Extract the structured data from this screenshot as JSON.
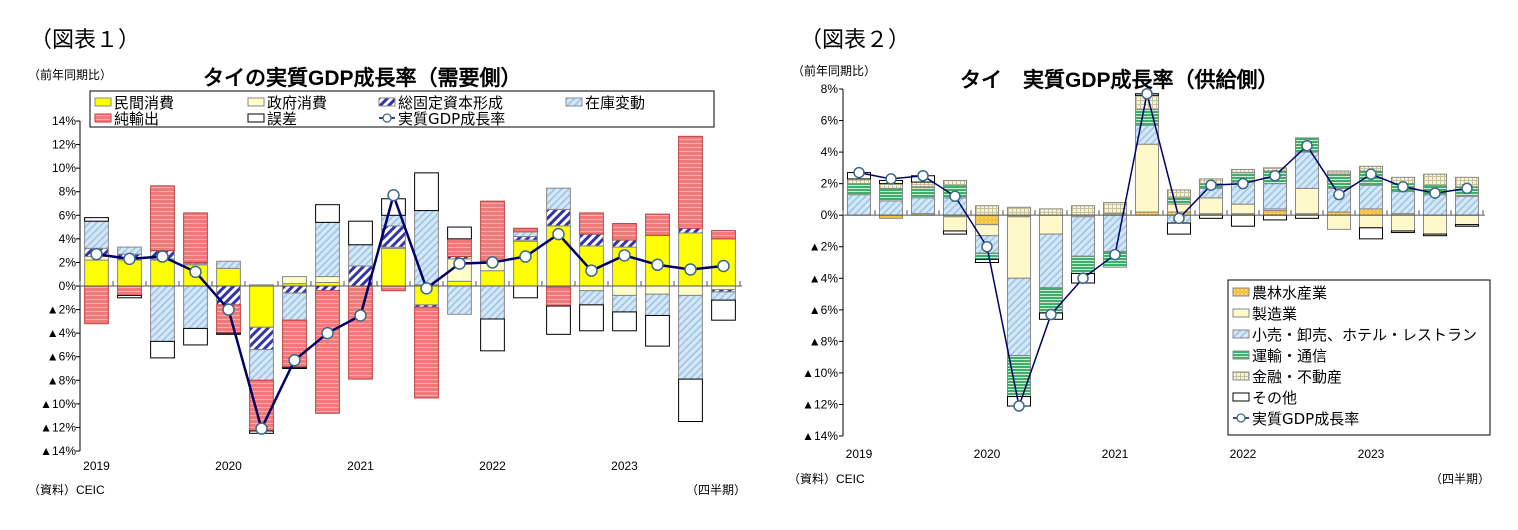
{
  "charts": [
    {
      "fig_label": "（図表１）",
      "unit_label": "（前年同期比）",
      "title": "タイの実質GDP成長率（需要側）",
      "source": "（資料）CEIC",
      "period_label": "（四半期）"
    },
    {
      "fig_label": "（図表２）",
      "unit_label": "（前年同期比）",
      "title": "タイ　実質GDP成長率（供給側）",
      "source": "（資料）CEIC",
      "period_label": "（四半期）"
    }
  ],
  "chart_data": [
    {
      "type": "bar",
      "stacked": true,
      "title": "タイの実質GDP成長率（需要側）",
      "ylabel": "（前年同期比）",
      "xlabel": "（四半期）",
      "ylim": [
        -14,
        14
      ],
      "yticks": [
        14,
        12,
        10,
        8,
        6,
        4,
        2,
        0,
        -2,
        -4,
        -6,
        -8,
        -10,
        -12,
        -14
      ],
      "ytick_labels": [
        "14%",
        "12%",
        "10%",
        "8%",
        "6%",
        "4%",
        "2%",
        "0%",
        "▲2%",
        "▲4%",
        "▲6%",
        "▲8%",
        "▲10%",
        "▲12%",
        "▲14%"
      ],
      "x_year_labels": [
        "2019",
        "2020",
        "2021",
        "2022",
        "2023"
      ],
      "legend_position": "top",
      "categories": [
        "2019Q1",
        "2019Q2",
        "2019Q3",
        "2019Q4",
        "2020Q1",
        "2020Q2",
        "2020Q3",
        "2020Q4",
        "2021Q1",
        "2021Q2",
        "2021Q3",
        "2021Q4",
        "2022Q1",
        "2022Q2",
        "2022Q3",
        "2022Q4",
        "2023Q1",
        "2023Q2",
        "2023Q3",
        "2023Q4"
      ],
      "series": [
        {
          "name": "民間消費",
          "color": "#ffff00",
          "pattern": "solid",
          "values": [
            2.2,
            2.2,
            2.2,
            1.8,
            1.5,
            -3.5,
            0.2,
            0.3,
            0.0,
            3.2,
            -1.6,
            0.4,
            1.3,
            3.8,
            5.1,
            3.4,
            3.3,
            4.3,
            4.5,
            4.0
          ]
        },
        {
          "name": "政府消費",
          "color": "#ffffcc",
          "pattern": "solid",
          "values": [
            0.3,
            0.1,
            0.1,
            0.1,
            0.0,
            0.1,
            0.6,
            0.5,
            0.0,
            0.1,
            0.1,
            1.9,
            0.8,
            0.1,
            -0.1,
            -0.4,
            -0.8,
            -0.7,
            -0.8,
            -0.3
          ]
        },
        {
          "name": "総固定資本形成",
          "color": "#3333aa",
          "pattern": "hatch",
          "values": [
            0.7,
            0.4,
            0.7,
            0.1,
            -1.6,
            -1.9,
            -0.6,
            -0.4,
            1.7,
            1.8,
            -0.2,
            0.2,
            0.1,
            0.3,
            1.4,
            1.0,
            0.6,
            0.0,
            0.4,
            -0.2
          ]
        },
        {
          "name": "在庫変動",
          "color": "#bcd9f2",
          "pattern": "hatch-light",
          "values": [
            2.3,
            0.6,
            -4.7,
            -3.6,
            0.6,
            -2.6,
            -2.3,
            4.6,
            1.8,
            0.9,
            6.3,
            -2.4,
            -2.8,
            0.4,
            1.8,
            -1.2,
            -1.4,
            -1.8,
            -7.1,
            -0.7
          ]
        },
        {
          "name": "純輸出",
          "color": "#f07a7a",
          "pattern": "stripe",
          "values": [
            -3.2,
            -0.8,
            5.5,
            4.2,
            -2.4,
            -4.3,
            -4.0,
            -10.4,
            -7.9,
            -0.4,
            -7.7,
            1.5,
            5.0,
            0.3,
            -1.6,
            1.8,
            1.4,
            1.8,
            7.8,
            0.7
          ]
        },
        {
          "name": "誤差",
          "color": "#ffffff",
          "pattern": "solid",
          "values": [
            0.3,
            -0.2,
            -1.4,
            -1.4,
            -0.1,
            -0.2,
            -0.1,
            1.5,
            2.0,
            1.4,
            3.2,
            1.0,
            -2.7,
            -1.0,
            -2.4,
            -2.2,
            -1.6,
            -2.6,
            -3.6,
            -1.7
          ]
        }
      ],
      "line": {
        "name": "実質GDP成長率",
        "color": "#000066",
        "values": [
          2.7,
          2.3,
          2.5,
          1.2,
          -2.0,
          -12.1,
          -6.3,
          -4.0,
          -2.5,
          7.7,
          -0.2,
          1.9,
          2.0,
          2.5,
          4.4,
          1.3,
          2.6,
          1.8,
          1.4,
          1.7
        ]
      }
    },
    {
      "type": "bar",
      "stacked": true,
      "title": "タイ　実質GDP成長率（供給側）",
      "ylabel": "（前年同期比）",
      "xlabel": "（四半期）",
      "ylim": [
        -14,
        8
      ],
      "yticks": [
        8,
        6,
        4,
        2,
        0,
        -2,
        -4,
        -6,
        -8,
        -10,
        -12,
        -14
      ],
      "ytick_labels": [
        "8%",
        "6%",
        "4%",
        "2%",
        "0%",
        "▲2%",
        "▲4%",
        "▲6%",
        "▲8%",
        "▲10%",
        "▲12%",
        "▲14%"
      ],
      "x_year_labels": [
        "2019",
        "2020",
        "2021",
        "2022",
        "2023"
      ],
      "legend_position": "bottom-right",
      "categories": [
        "2019Q1",
        "2019Q2",
        "2019Q3",
        "2019Q4",
        "2020Q1",
        "2020Q2",
        "2020Q3",
        "2020Q4",
        "2021Q1",
        "2021Q2",
        "2021Q3",
        "2021Q4",
        "2022Q1",
        "2022Q2",
        "2022Q3",
        "2022Q4",
        "2023Q1",
        "2023Q2",
        "2023Q3",
        "2023Q4"
      ],
      "series": [
        {
          "name": "農林水産業",
          "color": "#f5c242",
          "pattern": "dots",
          "values": [
            0.0,
            -0.2,
            0.1,
            -0.1,
            -0.6,
            -0.1,
            0.0,
            0.0,
            0.1,
            0.2,
            0.2,
            0.1,
            0.1,
            0.3,
            0.1,
            0.2,
            0.4,
            0.1,
            0.0,
            0.0
          ]
        },
        {
          "name": "製造業",
          "color": "#fff8c8",
          "pattern": "solid",
          "values": [
            0.0,
            0.0,
            0.0,
            -0.9,
            -0.7,
            -3.9,
            -1.2,
            -0.1,
            0.0,
            4.3,
            0.5,
            1.0,
            0.6,
            0.1,
            1.6,
            -0.9,
            -0.8,
            -1.0,
            -1.2,
            -0.6
          ]
        },
        {
          "name": "小売・卸売、ホテル・レストラン",
          "color": "#bcd9f2",
          "pattern": "hatch-light",
          "values": [
            1.3,
            0.9,
            1.0,
            1.1,
            -1.1,
            -4.9,
            -3.4,
            -2.5,
            -2.3,
            1.2,
            -0.5,
            0.6,
            1.4,
            1.6,
            2.3,
            1.5,
            1.5,
            1.4,
            1.3,
            1.2
          ]
        },
        {
          "name": "運輸・通信",
          "color": "#3fae6a",
          "pattern": "stripe",
          "values": [
            0.7,
            0.8,
            0.7,
            0.8,
            -0.4,
            -2.6,
            -1.6,
            -1.1,
            -1.0,
            1.0,
            0.4,
            0.3,
            0.6,
            0.8,
            0.9,
            0.9,
            0.9,
            0.5,
            0.6,
            0.6
          ]
        },
        {
          "name": "金融・不動産",
          "color": "#eae6c0",
          "pattern": "grid",
          "values": [
            0.3,
            0.3,
            0.3,
            0.3,
            0.6,
            0.5,
            0.4,
            0.6,
            0.7,
            0.9,
            0.5,
            0.3,
            0.2,
            0.2,
            0.0,
            0.2,
            0.3,
            0.4,
            0.7,
            0.6
          ]
        },
        {
          "name": "その他",
          "color": "#ffffff",
          "pattern": "solid",
          "values": [
            0.4,
            0.2,
            0.4,
            -0.2,
            -0.2,
            -0.6,
            -0.4,
            -0.6,
            0.0,
            0.1,
            -0.7,
            -0.2,
            -0.7,
            -0.3,
            -0.2,
            0.0,
            -0.7,
            -0.1,
            -0.1,
            -0.1
          ]
        }
      ],
      "line": {
        "name": "実質GDP成長率",
        "color": "#000066",
        "values": [
          2.7,
          2.3,
          2.5,
          1.2,
          -2.0,
          -12.1,
          -6.3,
          -4.0,
          -2.5,
          7.7,
          -0.2,
          1.9,
          2.0,
          2.5,
          4.4,
          1.3,
          2.6,
          1.8,
          1.4,
          1.7
        ]
      }
    }
  ]
}
